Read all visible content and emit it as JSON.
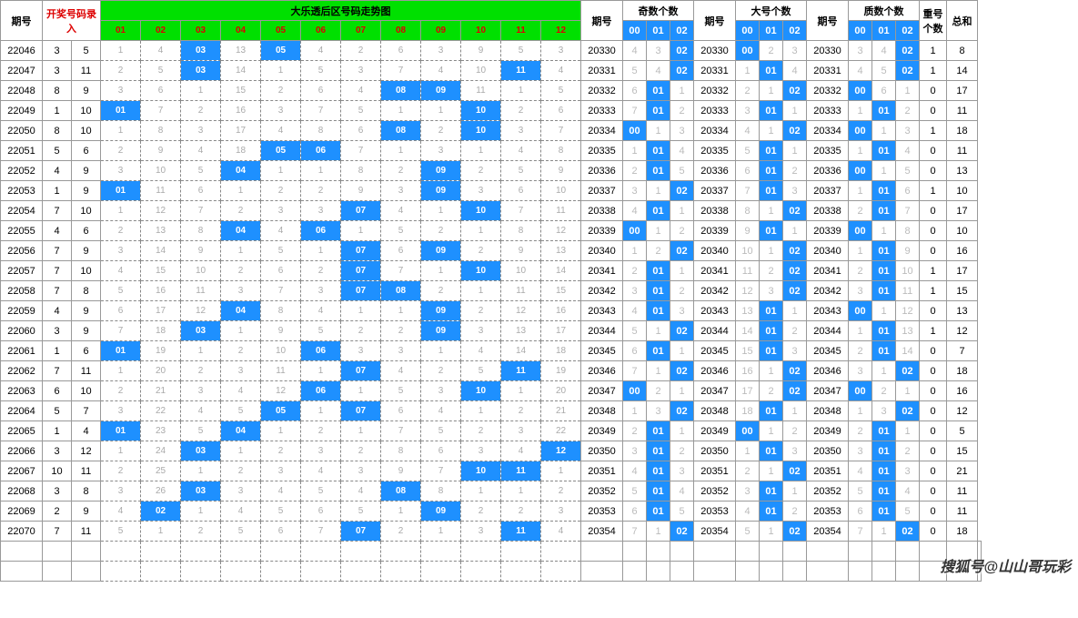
{
  "headers": {
    "issue": "期号",
    "entry": "开奖号码录入",
    "trend_title": "大乐透后区号码走势图",
    "issue2": "期号",
    "odd_count": "奇数个数",
    "big_count": "大号个数",
    "prime_count": "质数个数",
    "repeat": "重号个数",
    "sum": "总和",
    "trend_cols": [
      "01",
      "02",
      "03",
      "04",
      "05",
      "06",
      "07",
      "08",
      "09",
      "10",
      "11",
      "12"
    ],
    "stat_cols": [
      "00",
      "01",
      "02"
    ]
  },
  "colors": {
    "hit_bg": "#1e90ff",
    "hit_fg": "#ffffff",
    "header_green": "#00e000",
    "col_num": "#dd0000",
    "dim": "#bbbbbb",
    "border": "#999999"
  },
  "col_widths": {
    "issue": 46,
    "draw": 32,
    "trend": 44,
    "stat_issue": 46,
    "stat": 26,
    "repeat": 30,
    "sum": 34
  },
  "rows": [
    {
      "issue": "22046",
      "draw": [
        3,
        5
      ],
      "trend": [
        1,
        4,
        "03",
        13,
        "05",
        4,
        2,
        6,
        3,
        9,
        5,
        3
      ],
      "si": "20330",
      "odd": [
        4,
        3,
        "02"
      ],
      "si2": "20330",
      "big": [
        "00",
        2,
        3
      ],
      "si3": "20330",
      "prime": [
        3,
        4,
        "02"
      ],
      "rep": 1,
      "sum": 8
    },
    {
      "issue": "22047",
      "draw": [
        3,
        11
      ],
      "trend": [
        2,
        5,
        "03",
        14,
        1,
        5,
        3,
        7,
        4,
        10,
        "11",
        4
      ],
      "si": "20331",
      "odd": [
        5,
        4,
        "02"
      ],
      "si2": "20331",
      "big": [
        1,
        "01",
        4
      ],
      "si3": "20331",
      "prime": [
        4,
        5,
        "02"
      ],
      "rep": 1,
      "sum": 14
    },
    {
      "issue": "22048",
      "draw": [
        8,
        9
      ],
      "trend": [
        3,
        6,
        1,
        15,
        2,
        6,
        4,
        "08",
        "09",
        11,
        1,
        5
      ],
      "si": "20332",
      "odd": [
        6,
        "01",
        1
      ],
      "si2": "20332",
      "big": [
        2,
        1,
        "02"
      ],
      "si3": "20332",
      "prime": [
        "00",
        6,
        1
      ],
      "rep": 0,
      "sum": 17
    },
    {
      "issue": "22049",
      "draw": [
        1,
        10
      ],
      "trend": [
        "01",
        7,
        2,
        16,
        3,
        7,
        5,
        1,
        1,
        "10",
        2,
        6
      ],
      "si": "20333",
      "odd": [
        7,
        "01",
        2
      ],
      "si2": "20333",
      "big": [
        3,
        "01",
        1
      ],
      "si3": "20333",
      "prime": [
        1,
        "01",
        2
      ],
      "rep": 0,
      "sum": 11
    },
    {
      "issue": "22050",
      "draw": [
        8,
        10
      ],
      "trend": [
        1,
        8,
        3,
        17,
        4,
        8,
        6,
        "08",
        2,
        "10",
        3,
        7
      ],
      "si": "20334",
      "odd": [
        "00",
        1,
        3
      ],
      "si2": "20334",
      "big": [
        4,
        1,
        "02"
      ],
      "si3": "20334",
      "prime": [
        "00",
        1,
        3
      ],
      "rep": 1,
      "sum": 18
    },
    {
      "issue": "22051",
      "draw": [
        5,
        6
      ],
      "trend": [
        2,
        9,
        4,
        18,
        "05",
        "06",
        7,
        1,
        3,
        1,
        4,
        8
      ],
      "si": "20335",
      "odd": [
        1,
        "01",
        4
      ],
      "si2": "20335",
      "big": [
        5,
        "01",
        1
      ],
      "si3": "20335",
      "prime": [
        1,
        "01",
        4
      ],
      "rep": 0,
      "sum": 11
    },
    {
      "issue": "22052",
      "draw": [
        4,
        9
      ],
      "trend": [
        3,
        10,
        5,
        "04",
        1,
        1,
        8,
        2,
        "09",
        2,
        5,
        9
      ],
      "si": "20336",
      "odd": [
        2,
        "01",
        5
      ],
      "si2": "20336",
      "big": [
        6,
        "01",
        2
      ],
      "si3": "20336",
      "prime": [
        "00",
        1,
        5
      ],
      "rep": 0,
      "sum": 13
    },
    {
      "issue": "22053",
      "draw": [
        1,
        9
      ],
      "trend": [
        "01",
        11,
        6,
        1,
        2,
        2,
        9,
        3,
        "09",
        3,
        6,
        10
      ],
      "si": "20337",
      "odd": [
        3,
        1,
        "02"
      ],
      "si2": "20337",
      "big": [
        7,
        "01",
        3
      ],
      "si3": "20337",
      "prime": [
        1,
        "01",
        6
      ],
      "rep": 1,
      "sum": 10
    },
    {
      "issue": "22054",
      "draw": [
        7,
        10
      ],
      "trend": [
        1,
        12,
        7,
        2,
        3,
        3,
        "07",
        4,
        1,
        "10",
        7,
        11
      ],
      "si": "20338",
      "odd": [
        4,
        "01",
        1
      ],
      "si2": "20338",
      "big": [
        8,
        1,
        "02"
      ],
      "si3": "20338",
      "prime": [
        2,
        "01",
        7
      ],
      "rep": 0,
      "sum": 17
    },
    {
      "issue": "22055",
      "draw": [
        4,
        6
      ],
      "trend": [
        2,
        13,
        8,
        "04",
        4,
        "06",
        1,
        5,
        2,
        1,
        8,
        12
      ],
      "si": "20339",
      "odd": [
        "00",
        1,
        2
      ],
      "si2": "20339",
      "big": [
        9,
        "01",
        1
      ],
      "si3": "20339",
      "prime": [
        "00",
        1,
        8
      ],
      "rep": 0,
      "sum": 10
    },
    {
      "issue": "22056",
      "draw": [
        7,
        9
      ],
      "trend": [
        3,
        14,
        9,
        1,
        5,
        1,
        "07",
        6,
        "09",
        2,
        9,
        13
      ],
      "si": "20340",
      "odd": [
        1,
        2,
        "02"
      ],
      "si2": "20340",
      "big": [
        10,
        1,
        "02"
      ],
      "si3": "20340",
      "prime": [
        1,
        "01",
        9
      ],
      "rep": 0,
      "sum": 16
    },
    {
      "issue": "22057",
      "draw": [
        7,
        10
      ],
      "trend": [
        4,
        15,
        10,
        2,
        6,
        2,
        "07",
        7,
        1,
        "10",
        10,
        14
      ],
      "si": "20341",
      "odd": [
        2,
        "01",
        1
      ],
      "si2": "20341",
      "big": [
        11,
        2,
        "02"
      ],
      "si3": "20341",
      "prime": [
        2,
        "01",
        10
      ],
      "rep": 1,
      "sum": 17
    },
    {
      "issue": "22058",
      "draw": [
        7,
        8
      ],
      "trend": [
        5,
        16,
        11,
        3,
        7,
        3,
        "07",
        "08",
        2,
        1,
        11,
        15
      ],
      "si": "20342",
      "odd": [
        3,
        "01",
        2
      ],
      "si2": "20342",
      "big": [
        12,
        3,
        "02"
      ],
      "si3": "20342",
      "prime": [
        3,
        "01",
        11
      ],
      "rep": 1,
      "sum": 15
    },
    {
      "issue": "22059",
      "draw": [
        4,
        9
      ],
      "trend": [
        6,
        17,
        12,
        "04",
        8,
        4,
        1,
        1,
        "09",
        2,
        12,
        16
      ],
      "si": "20343",
      "odd": [
        4,
        "01",
        3
      ],
      "si2": "20343",
      "big": [
        13,
        "01",
        1
      ],
      "si3": "20343",
      "prime": [
        "00",
        1,
        12
      ],
      "rep": 0,
      "sum": 13
    },
    {
      "issue": "22060",
      "draw": [
        3,
        9
      ],
      "trend": [
        7,
        18,
        "03",
        1,
        9,
        5,
        2,
        2,
        "09",
        3,
        13,
        17
      ],
      "si": "20344",
      "odd": [
        5,
        1,
        "02"
      ],
      "si2": "20344",
      "big": [
        14,
        "01",
        2
      ],
      "si3": "20344",
      "prime": [
        1,
        "01",
        13
      ],
      "rep": 1,
      "sum": 12
    },
    {
      "issue": "22061",
      "draw": [
        1,
        6
      ],
      "trend": [
        "01",
        19,
        1,
        2,
        10,
        "06",
        3,
        3,
        1,
        4,
        14,
        18
      ],
      "si": "20345",
      "odd": [
        6,
        "01",
        1
      ],
      "si2": "20345",
      "big": [
        15,
        "01",
        3
      ],
      "si3": "20345",
      "prime": [
        2,
        "01",
        14
      ],
      "rep": 0,
      "sum": 7
    },
    {
      "issue": "22062",
      "draw": [
        7,
        11
      ],
      "trend": [
        1,
        20,
        2,
        3,
        11,
        1,
        "07",
        4,
        2,
        5,
        "11",
        19
      ],
      "si": "20346",
      "odd": [
        7,
        1,
        "02"
      ],
      "si2": "20346",
      "big": [
        16,
        1,
        "02"
      ],
      "si3": "20346",
      "prime": [
        3,
        1,
        "02"
      ],
      "rep": 0,
      "sum": 18
    },
    {
      "issue": "22063",
      "draw": [
        6,
        10
      ],
      "trend": [
        2,
        21,
        3,
        4,
        12,
        "06",
        1,
        5,
        3,
        "10",
        1,
        20
      ],
      "si": "20347",
      "odd": [
        "00",
        2,
        1
      ],
      "si2": "20347",
      "big": [
        17,
        2,
        "02"
      ],
      "si3": "20347",
      "prime": [
        "00",
        2,
        1
      ],
      "rep": 0,
      "sum": 16
    },
    {
      "issue": "22064",
      "draw": [
        5,
        7
      ],
      "trend": [
        3,
        22,
        4,
        5,
        "05",
        1,
        "07",
        6,
        4,
        1,
        2,
        21
      ],
      "si": "20348",
      "odd": [
        1,
        3,
        "02"
      ],
      "si2": "20348",
      "big": [
        18,
        "01",
        1
      ],
      "si3": "20348",
      "prime": [
        1,
        3,
        "02"
      ],
      "rep": 0,
      "sum": 12
    },
    {
      "issue": "22065",
      "draw": [
        1,
        4
      ],
      "trend": [
        "01",
        23,
        5,
        "04",
        1,
        2,
        1,
        7,
        5,
        2,
        3,
        22
      ],
      "si": "20349",
      "odd": [
        2,
        "01",
        1
      ],
      "si2": "20349",
      "big": [
        "00",
        1,
        2
      ],
      "si3": "20349",
      "prime": [
        2,
        "01",
        1
      ],
      "rep": 0,
      "sum": 5
    },
    {
      "issue": "22066",
      "draw": [
        3,
        12
      ],
      "trend": [
        1,
        24,
        "03",
        1,
        2,
        3,
        2,
        8,
        6,
        3,
        4,
        "12"
      ],
      "si": "20350",
      "odd": [
        3,
        "01",
        2
      ],
      "si2": "20350",
      "big": [
        1,
        "01",
        3
      ],
      "si3": "20350",
      "prime": [
        3,
        "01",
        2
      ],
      "rep": 0,
      "sum": 15
    },
    {
      "issue": "22067",
      "draw": [
        10,
        11
      ],
      "trend": [
        2,
        25,
        1,
        2,
        3,
        4,
        3,
        9,
        7,
        "10",
        "11",
        1
      ],
      "si": "20351",
      "odd": [
        4,
        "01",
        3
      ],
      "si2": "20351",
      "big": [
        2,
        1,
        "02"
      ],
      "si3": "20351",
      "prime": [
        4,
        "01",
        3
      ],
      "rep": 0,
      "sum": 21
    },
    {
      "issue": "22068",
      "draw": [
        3,
        8
      ],
      "trend": [
        3,
        26,
        "03",
        3,
        4,
        5,
        4,
        "08",
        8,
        1,
        1,
        2
      ],
      "si": "20352",
      "odd": [
        5,
        "01",
        4
      ],
      "si2": "20352",
      "big": [
        3,
        "01",
        1
      ],
      "si3": "20352",
      "prime": [
        5,
        "01",
        4
      ],
      "rep": 0,
      "sum": 11
    },
    {
      "issue": "22069",
      "draw": [
        2,
        9
      ],
      "trend": [
        4,
        "02",
        1,
        4,
        5,
        6,
        5,
        1,
        "09",
        2,
        2,
        3
      ],
      "si": "20353",
      "odd": [
        6,
        "01",
        5
      ],
      "si2": "20353",
      "big": [
        4,
        "01",
        2
      ],
      "si3": "20353",
      "prime": [
        6,
        "01",
        5
      ],
      "rep": 0,
      "sum": 11
    },
    {
      "issue": "22070",
      "draw": [
        7,
        11
      ],
      "trend": [
        5,
        1,
        2,
        5,
        6,
        7,
        "07",
        2,
        1,
        3,
        "11",
        4
      ],
      "si": "20354",
      "odd": [
        7,
        1,
        "02"
      ],
      "si2": "20354",
      "big": [
        5,
        1,
        "02"
      ],
      "si3": "20354",
      "prime": [
        7,
        1,
        "02"
      ],
      "rep": 0,
      "sum": 18
    }
  ]
}
